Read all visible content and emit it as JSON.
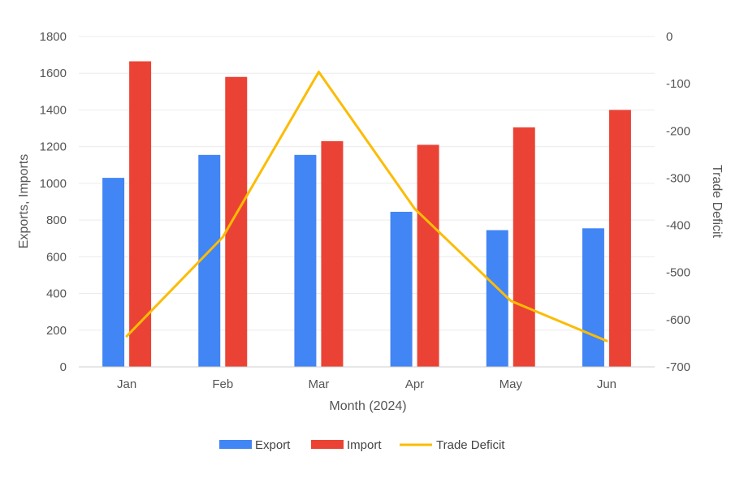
{
  "chart_data": {
    "type": "bar",
    "categories": [
      "Jan",
      "Feb",
      "Mar",
      "Apr",
      "May",
      "Jun"
    ],
    "xlabel": "Month (2024)",
    "ylabel": "Exports, Imports",
    "y2label": "Trade Deficit",
    "ylim": [
      0,
      1800
    ],
    "y2lim": [
      -700,
      0
    ],
    "yticks": [
      "0",
      "200",
      "400",
      "600",
      "800",
      "1000",
      "1200",
      "1400",
      "1600",
      "1800"
    ],
    "y2ticks": [
      "0",
      "-100",
      "-200",
      "-300",
      "-400",
      "-500",
      "-600",
      "-700"
    ],
    "grid": true,
    "legend_position": "bottom",
    "series": [
      {
        "name": "Export",
        "type": "bar",
        "axis": "left",
        "color": "#4285F4",
        "values": [
          1030,
          1155,
          1155,
          845,
          745,
          755
        ]
      },
      {
        "name": "Import",
        "type": "bar",
        "axis": "left",
        "color": "#EA4335",
        "values": [
          1665,
          1580,
          1230,
          1210,
          1305,
          1400
        ]
      },
      {
        "name": "Trade Deficit",
        "type": "line",
        "axis": "right",
        "color": "#FBBC04",
        "values": [
          -635,
          -425,
          -75,
          -365,
          -560,
          -645
        ]
      }
    ]
  }
}
